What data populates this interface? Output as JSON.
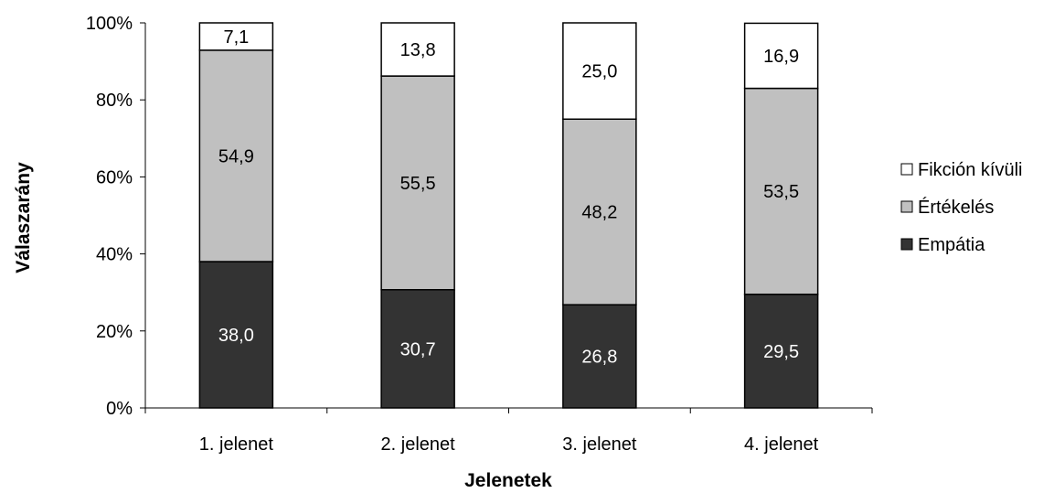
{
  "chart_data": {
    "type": "bar",
    "stacked": true,
    "percent_scale": true,
    "categories": [
      "1. jelenet",
      "2. jelenet",
      "3. jelenet",
      "4. jelenet"
    ],
    "series": [
      {
        "name": "Empátia",
        "values": [
          38.0,
          30.7,
          26.8,
          29.5
        ],
        "labels": [
          "38,0",
          "30,7",
          "26,8",
          "29,5"
        ],
        "color": "#333333",
        "label_color": "#ffffff"
      },
      {
        "name": "Értékelés",
        "values": [
          54.9,
          55.5,
          48.2,
          53.5
        ],
        "labels": [
          "54,9",
          "55,5",
          "48,2",
          "53,5"
        ],
        "color": "#c0c0c0",
        "label_color": "#000000"
      },
      {
        "name": "Fikción kívüli",
        "values": [
          7.1,
          13.8,
          25.0,
          16.9
        ],
        "labels": [
          "7,1",
          "13,8",
          "25,0",
          "16,9"
        ],
        "color": "#ffffff",
        "label_color": "#000000"
      }
    ],
    "yticks": [
      "0%",
      "20%",
      "40%",
      "60%",
      "80%",
      "100%"
    ],
    "ylim": [
      0,
      100
    ],
    "xlabel": "Jelenetek",
    "ylabel": "Válaszarány",
    "legend_position": "right",
    "legend_order": [
      "Fikción kívüli",
      "Értékelés",
      "Empátia"
    ],
    "grid": false
  }
}
